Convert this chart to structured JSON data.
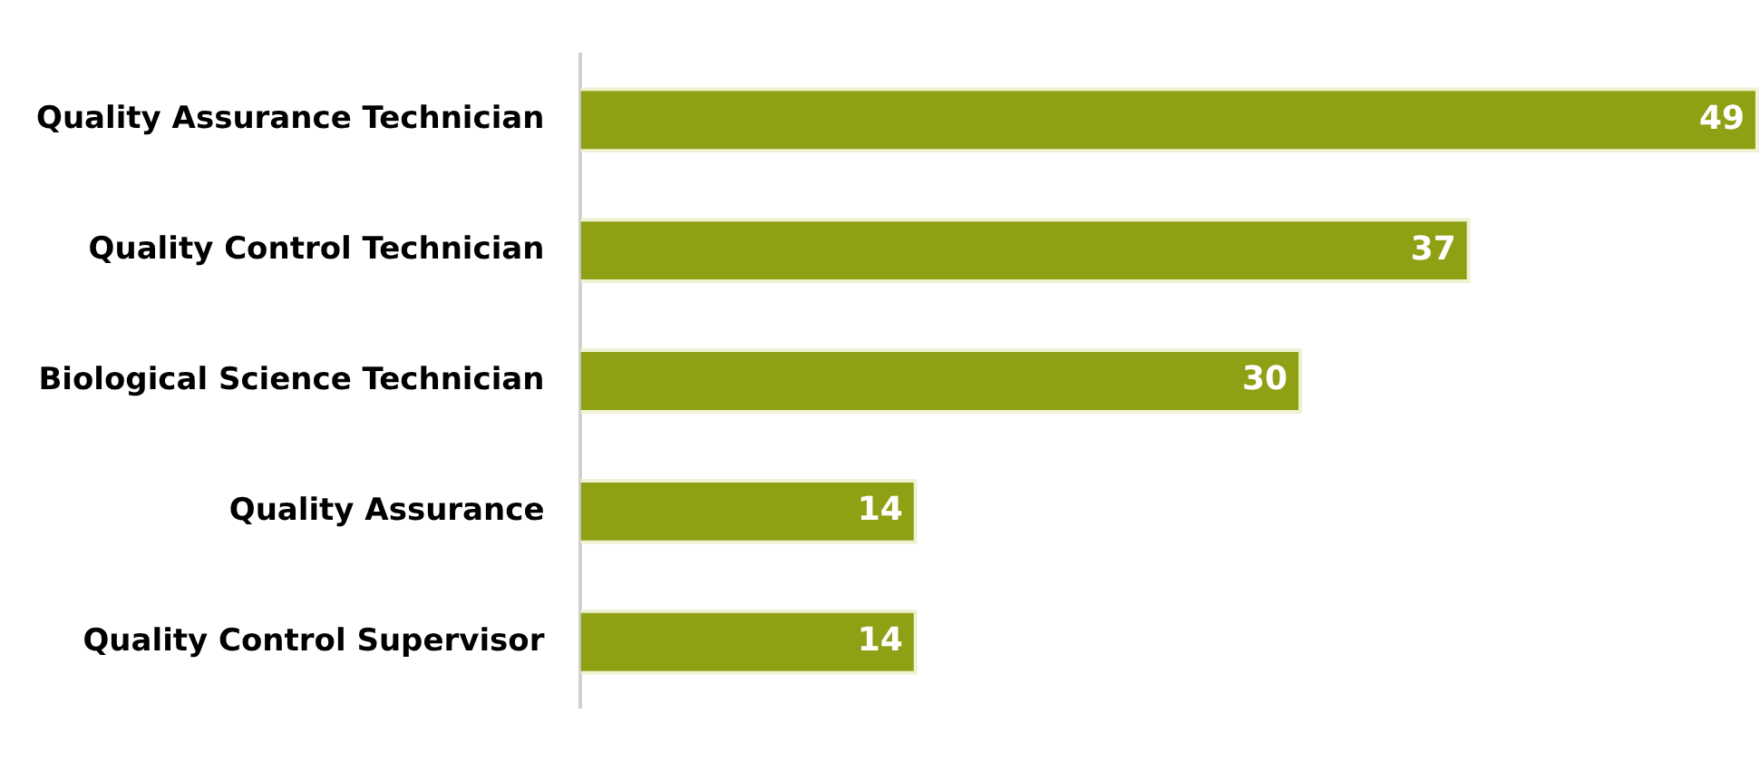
{
  "chart_data": {
    "type": "bar",
    "orientation": "horizontal",
    "categories": [
      "Quality Assurance Technician",
      "Quality Control Technician",
      "Biological Science Technician",
      "Quality Assurance",
      "Quality Control Supervisor"
    ],
    "values": [
      49,
      37,
      30,
      14,
      14
    ],
    "color": "#8fa015",
    "data_labels": true,
    "grid": false,
    "legend": false
  }
}
